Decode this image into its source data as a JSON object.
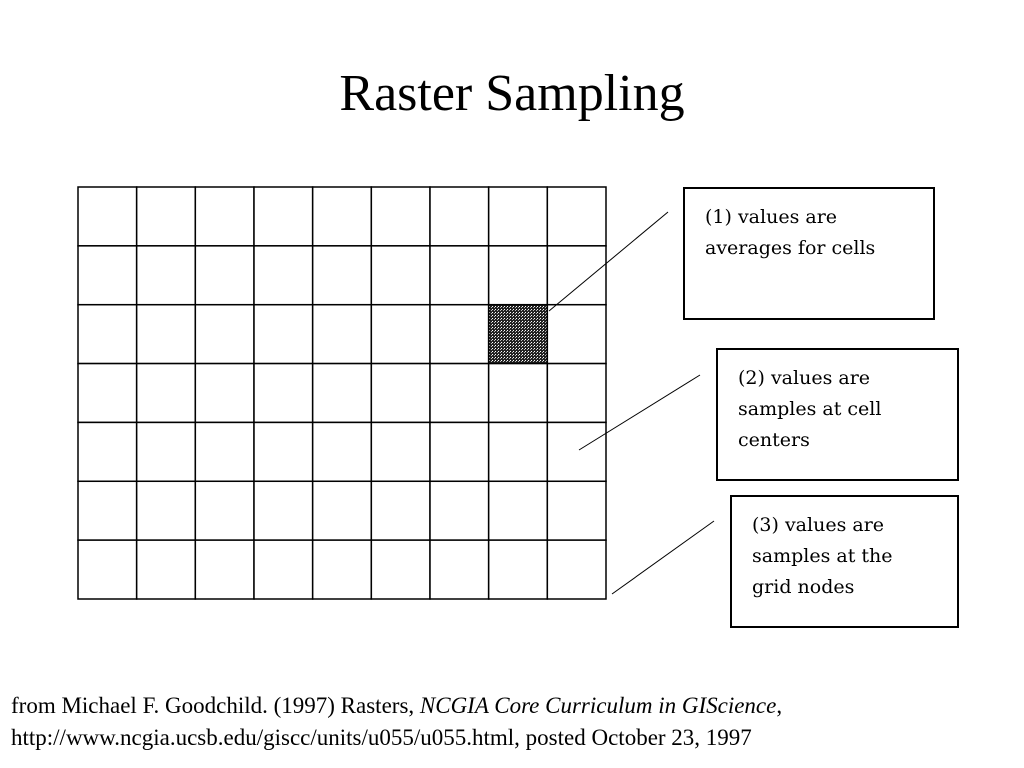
{
  "title": "Raster Sampling",
  "grid": {
    "columns": 9,
    "rows": 7,
    "highlighted_cell": {
      "column": 8,
      "row": 3
    }
  },
  "callouts": [
    {
      "lines": [
        "(1) values are",
        "averages for cells"
      ]
    },
    {
      "lines": [
        "(2) values are",
        "samples at cell",
        "centers"
      ]
    },
    {
      "lines": [
        "(3) values are",
        "samples at the",
        "grid nodes"
      ]
    }
  ],
  "citation": {
    "line1_prefix": "from Michael F. Goodchild. (1997) Rasters, ",
    "line1_italic": "NCGIA Core Curriculum in GIScience",
    "line1_suffix": ",",
    "line2": "http://www.ncgia.ucsb.edu/giscc/units/u055/u055.html, posted October 23, 1997"
  }
}
